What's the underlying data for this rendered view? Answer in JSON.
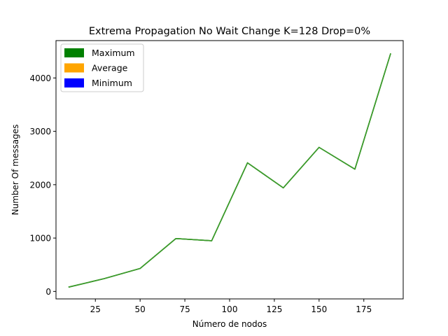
{
  "chart_data": {
    "type": "line",
    "title": "Extrema Propagation No Wait Change K=128 Drop=0%",
    "xlabel": "Número de nodos",
    "ylabel": "Number Of messages",
    "x": [
      10,
      30,
      50,
      70,
      90,
      110,
      130,
      150,
      170,
      190
    ],
    "xlim": [
      3,
      197
    ],
    "ylim": [
      -140,
      4700
    ],
    "xticks": [
      25,
      50,
      75,
      100,
      125,
      150,
      175
    ],
    "yticks": [
      0,
      1000,
      2000,
      3000,
      4000
    ],
    "grid": false,
    "legend_position": "top-left",
    "series": [
      {
        "name": "Maximum",
        "color": "#008000",
        "values": [
          80,
          240,
          430,
          990,
          950,
          2410,
          1940,
          2700,
          2290,
          4460
        ]
      },
      {
        "name": "Average",
        "color": "#ffa500",
        "values": [
          80,
          240,
          430,
          990,
          950,
          2410,
          1940,
          2700,
          2290,
          4460
        ]
      },
      {
        "name": "Minimum",
        "color": "#0000ff",
        "values": [
          80,
          240,
          430,
          990,
          950,
          2410,
          1940,
          2700,
          2290,
          4460
        ]
      }
    ],
    "line_color": "#3c9a2c"
  }
}
